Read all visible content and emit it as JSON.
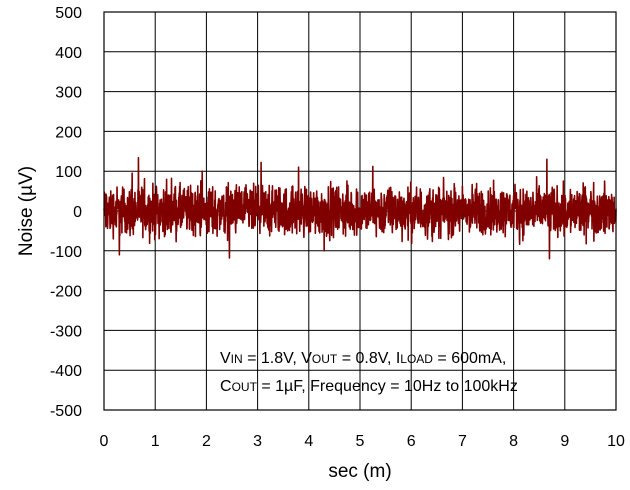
{
  "chart_data": {
    "type": "line",
    "xlabel": "sec (m)",
    "ylabel": "Noise (µV)",
    "xlim": [
      0,
      10
    ],
    "ylim": [
      -500,
      500
    ],
    "x_ticks": [
      "0",
      "1",
      "2",
      "3",
      "4",
      "5",
      "6",
      "7",
      "8",
      "9",
      "10"
    ],
    "y_ticks": [
      "500",
      "400",
      "300",
      "200",
      "100",
      "0",
      "-100",
      "-200",
      "-300",
      "-400",
      "-500"
    ],
    "grid": true,
    "line_color": "#800000",
    "signal": {
      "baseline": 0,
      "typical_amplitude": 45,
      "peaks": [
        {
          "x": 0.55,
          "y": 95
        },
        {
          "x": 1.92,
          "y": 100
        },
        {
          "x": 3.8,
          "y": 110
        },
        {
          "x": 5.25,
          "y": 112
        },
        {
          "x": 8.65,
          "y": 130
        },
        {
          "x": 0.3,
          "y": -110
        },
        {
          "x": 2.45,
          "y": -118
        },
        {
          "x": 4.3,
          "y": -100
        },
        {
          "x": 8.7,
          "y": -120
        }
      ]
    },
    "annotation": {
      "line1": [
        {
          "text": "V",
          "sub": false
        },
        {
          "text": "IN",
          "sub": true
        },
        {
          "text": " = 1.8V, V",
          "sub": false
        },
        {
          "text": "OUT",
          "sub": true
        },
        {
          "text": " = 0.8V, I",
          "sub": false
        },
        {
          "text": "LOAD",
          "sub": true
        },
        {
          "text": " = 600mA,",
          "sub": false
        }
      ],
      "line2": [
        {
          "text": "C",
          "sub": false
        },
        {
          "text": "OUT",
          "sub": true
        },
        {
          "text": " = 1",
          "sub": false
        },
        {
          "text": "µ",
          "sub": false
        },
        {
          "text": "F, Frequency = 10Hz to 100kHz",
          "sub": false
        }
      ]
    }
  }
}
